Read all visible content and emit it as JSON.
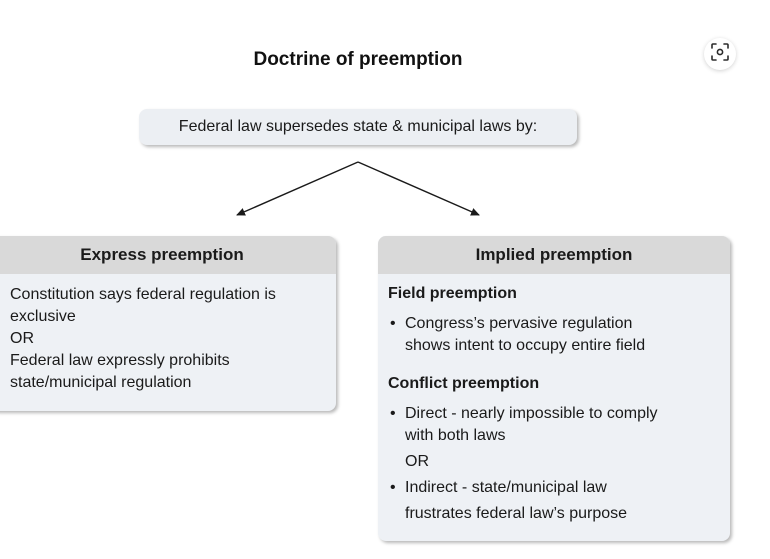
{
  "title": "Doctrine of preemption",
  "root": {
    "text": "Federal law supersedes state & municipal laws by:"
  },
  "express": {
    "heading": "Express preemption",
    "lines": [
      "Constitution says federal regulation is",
      "exclusive",
      "OR",
      "Federal law expressly prohibits",
      "state/municipal regulation"
    ]
  },
  "implied": {
    "heading": "Implied preemption",
    "field": {
      "heading": "Field preemption",
      "bullet_marker": "•",
      "bullets": [
        [
          "Congress’s pervasive regulation",
          "shows intent to occupy entire field"
        ]
      ]
    },
    "conflict": {
      "heading": "Conflict preemption",
      "bullet_marker": "•",
      "bullet1": [
        "Direct - nearly impossible to comply",
        "with both laws"
      ],
      "or_text": "OR",
      "bullet2": [
        "Indirect - state/municipal law",
        "frustrates federal law’s purpose"
      ]
    }
  },
  "icons": {
    "scan": "scan-icon"
  },
  "colors": {
    "box_fill": "#eef1f5",
    "header_fill": "#d9d9d9",
    "line": "#1a1a1a"
  }
}
